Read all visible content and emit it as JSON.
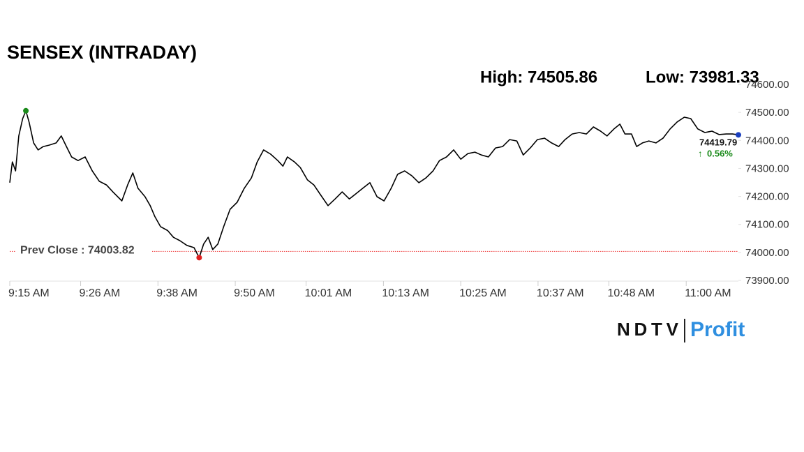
{
  "chart_data": {
    "type": "line",
    "title": "SENSEX (INTRADAY)",
    "high": {
      "label": "High: 74505.86",
      "value": 74505.86,
      "x": 557.5
    },
    "low": {
      "label": "Low: 73981.33",
      "value": 73981.33,
      "x": 584.4
    },
    "prev_close": {
      "label": "Prev Close : 74003.82",
      "value": 74003.82
    },
    "last": {
      "label": "74419.79",
      "value": 74419.79,
      "x": 668.1
    },
    "change": {
      "label": "0.56%",
      "value": 0.56
    },
    "brand": [
      "NDTV",
      "Profit"
    ],
    "x": [
      555,
      555.4,
      555.9,
      556.4,
      557.0,
      557.5,
      558.0,
      558.7,
      559.4,
      560.2,
      561.1,
      562.2,
      563.0,
      563.8,
      564.6,
      565.6,
      566.7,
      567.8,
      568.9,
      570.0,
      571.0,
      572.4,
      573.3,
      574.1,
      574.9,
      576.0,
      576.8,
      577.5,
      578.4,
      579.5,
      580.4,
      581.4,
      582.5,
      583.6,
      584.4,
      585.1,
      585.8,
      586.5,
      587.3,
      588.2,
      589.2,
      590.3,
      591.4,
      592.5,
      593.4,
      594.4,
      595.5,
      596.6,
      597.4,
      598.1,
      599.2,
      600.1,
      601.2,
      602.2,
      603.3,
      604.4,
      605.5,
      606.6,
      607.7,
      608.7,
      609.8,
      610.9,
      612.0,
      613.1,
      614.2,
      615.2,
      616.3,
      617.4,
      618.5,
      619.6,
      620.7,
      621.7,
      622.8,
      623.9,
      625.0,
      626.1,
      627.2,
      628.2,
      629.3,
      630.4,
      631.5,
      632.6,
      633.7,
      634.7,
      635.8,
      636.9,
      638.0,
      639.1,
      640.2,
      641.2,
      642.3,
      643.4,
      644.5,
      645.6,
      646.7,
      647.7,
      648.8,
      649.7,
      650.5,
      651.5,
      652.3,
      653.2,
      654.2,
      655.3,
      656.4,
      657.5,
      658.6,
      659.7,
      660.7,
      661.8,
      662.9,
      664.0,
      665.1,
      666.2,
      667.2,
      668.1
    ],
    "series": [
      {
        "name": "SENSEX",
        "color": "#000000",
        "values": [
          74249,
          74323,
          74291,
          74416,
          74478,
          74505.86,
          74465,
          74391,
          74366,
          74378,
          74383,
          74391,
          74416,
          74378,
          74341,
          74328,
          74341,
          74291,
          74254,
          74241,
          74216,
          74184,
          74241,
          74284,
          74229,
          74199,
          74167,
          74129,
          74092,
          74078,
          74054,
          74042,
          74025,
          74017,
          73981.33,
          74030,
          74054,
          74010,
          74030,
          74092,
          74154,
          74179,
          74229,
          74266,
          74323,
          74366,
          74351,
          74328,
          74308,
          74341,
          74323,
          74303,
          74259,
          74241,
          74204,
          74167,
          74191,
          74216,
          74191,
          74209,
          74229,
          74249,
          74199,
          74184,
          74229,
          74279,
          74291,
          74274,
          74249,
          74266,
          74291,
          74328,
          74341,
          74366,
          74333,
          74353,
          74358,
          74348,
          74341,
          74373,
          74378,
          74403,
          74398,
          74348,
          74373,
          74403,
          74408,
          74391,
          74378,
          74403,
          74423,
          74428,
          74423,
          74448,
          74433,
          74416,
          74441,
          74458,
          74423,
          74423,
          74378,
          74391,
          74398,
          74391,
          74408,
          74441,
          74466,
          74483,
          74478,
          74441,
          74428,
          74433,
          74421,
          74423,
          74423,
          74419.79
        ]
      }
    ],
    "xlim": [
      555,
      668.1
    ],
    "xticks": [
      {
        "value": 555,
        "label": "9:15 AM"
      },
      {
        "value": 566,
        "label": "9:26 AM"
      },
      {
        "value": 578,
        "label": "9:38 AM"
      },
      {
        "value": 590,
        "label": "9:50 AM"
      },
      {
        "value": 601,
        "label": "10:01 AM"
      },
      {
        "value": 613,
        "label": "10:13 AM"
      },
      {
        "value": 625,
        "label": "10:25 AM"
      },
      {
        "value": 637,
        "label": "10:37 AM"
      },
      {
        "value": 648,
        "label": "10:48 AM"
      },
      {
        "value": 660,
        "label": "11:00 AM"
      }
    ],
    "ylim": [
      73900,
      74600
    ],
    "yticks": [
      {
        "value": 73900,
        "label": "73900.00"
      },
      {
        "value": 74000,
        "label": "74000.00"
      },
      {
        "value": 74100,
        "label": "74100.00"
      },
      {
        "value": 74200,
        "label": "74200.00"
      },
      {
        "value": 74300,
        "label": "74300.00"
      },
      {
        "value": 74400,
        "label": "74400.00"
      },
      {
        "value": 74500,
        "label": "74500.00"
      },
      {
        "value": 74600,
        "label": "74600.00"
      }
    ],
    "grid": false
  }
}
